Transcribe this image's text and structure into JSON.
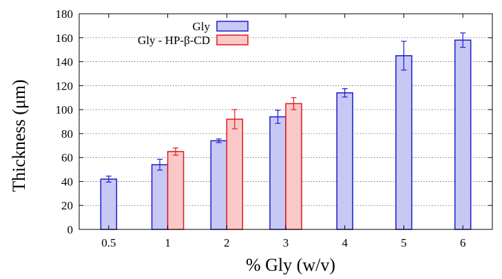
{
  "chart_data": {
    "type": "bar",
    "title": "",
    "xlabel": "% Gly (w/v)",
    "ylabel": "Thickness (μm)",
    "ylim": [
      0,
      180
    ],
    "yticks": [
      0,
      20,
      40,
      60,
      80,
      100,
      120,
      140,
      160,
      180
    ],
    "grid": "horizontal dotted",
    "legend_position": "top-left",
    "categories": [
      "0.5",
      "1",
      "2",
      "3",
      "4",
      "5",
      "6"
    ],
    "series": [
      {
        "name": "Gly",
        "fill": "#c8c8f5",
        "stroke": "#1a1acc",
        "values": [
          42,
          54,
          74,
          94,
          114,
          145,
          158
        ],
        "errors": [
          2.5,
          4.5,
          1.5,
          5.5,
          3.5,
          12,
          6
        ]
      },
      {
        "name": "Gly - HP-β-CD",
        "fill": "#fbc8c8",
        "stroke": "#dd1a1a",
        "values": [
          null,
          65,
          92,
          105,
          null,
          null,
          null
        ],
        "errors": [
          null,
          3,
          8,
          5,
          null,
          null,
          null
        ]
      }
    ]
  }
}
